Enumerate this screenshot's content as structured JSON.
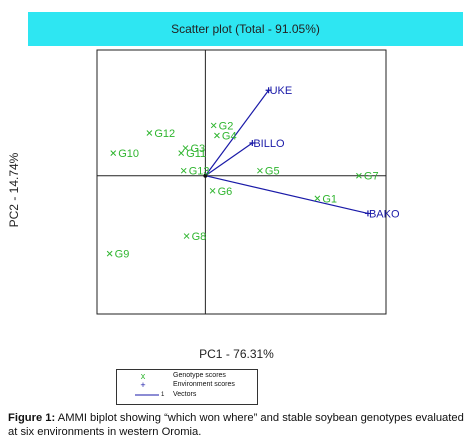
{
  "chart_data": {
    "type": "scatter",
    "title": "Scatter plot (Total - 91.05%)",
    "xlabel": "PC1 - 76.31%",
    "ylabel": "PC2 - 14.74%",
    "xlim": [
      -3.0,
      5.0
    ],
    "ylim": [
      -2.75,
      2.5
    ],
    "origin_lines": true,
    "legend_position": "bottom-left",
    "colors": {
      "genotype": "#2fb52f",
      "environment": "#1a1aa8",
      "vector": "#1a1aa8",
      "title_bg": "#2ee6f2"
    },
    "genotypes": [
      {
        "label": "G1",
        "x": 3.1,
        "y": -0.45
      },
      {
        "label": "G2",
        "x": 0.23,
        "y": 1.0
      },
      {
        "label": "G3",
        "x": -0.55,
        "y": 0.55
      },
      {
        "label": "G4",
        "x": 0.32,
        "y": 0.8
      },
      {
        "label": "G5",
        "x": 1.51,
        "y": 0.1
      },
      {
        "label": "G6",
        "x": 0.2,
        "y": -0.3
      },
      {
        "label": "G7",
        "x": 4.25,
        "y": 0.0
      },
      {
        "label": "G8",
        "x": -0.52,
        "y": -1.2
      },
      {
        "label": "G9",
        "x": -2.65,
        "y": -1.55
      },
      {
        "label": "G10",
        "x": -2.55,
        "y": 0.45
      },
      {
        "label": "G11",
        "x": -0.67,
        "y": 0.45
      },
      {
        "label": "G12",
        "x": -1.55,
        "y": 0.85
      },
      {
        "label": "G13",
        "x": -0.6,
        "y": 0.1
      }
    ],
    "environments": [
      {
        "label": "UKE",
        "x": 1.75,
        "y": 1.7
      },
      {
        "label": "BILLO",
        "x": 1.3,
        "y": 0.65
      },
      {
        "label": "BAKO",
        "x": 4.5,
        "y": -0.75
      }
    ],
    "legend": [
      {
        "symbol": "x",
        "label": "Genotype scores"
      },
      {
        "symbol": "+",
        "label": "Environment scores"
      },
      {
        "symbol": "line",
        "label": "Vectors",
        "number": "1"
      }
    ]
  },
  "caption": {
    "prefix": "Figure 1:",
    "text": " AMMI biplot showing “which won where” and stable soybean genotypes evaluated at six environments in western Oromia."
  }
}
